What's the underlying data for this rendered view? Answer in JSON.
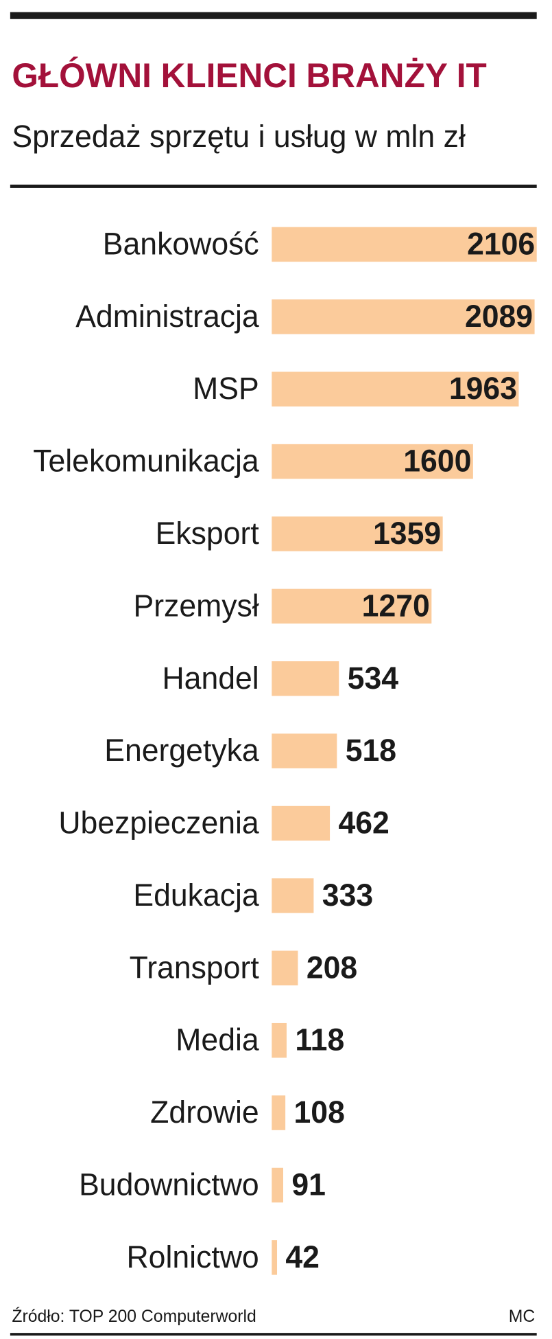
{
  "chart_data": {
    "type": "bar",
    "orientation": "horizontal",
    "title": "GŁÓWNI KLIENCI BRANŻY IT",
    "subtitle": "Sprzedaż sprzętu i usług w mln zł",
    "categories": [
      "Bankowość",
      "Administracja",
      "MSP",
      "Telekomunikacja",
      "Eksport",
      "Przemysł",
      "Handel",
      "Energetyka",
      "Ubezpieczenia",
      "Edukacja",
      "Transport",
      "Media",
      "Zdrowie",
      "Budownictwo",
      "Rolnictwo"
    ],
    "values": [
      2106,
      2089,
      1963,
      1600,
      1359,
      1270,
      534,
      518,
      462,
      333,
      208,
      118,
      108,
      91,
      42
    ],
    "color": "#fbcb9b",
    "source": "Źródło: TOP 200 Computerworld",
    "author": "MC"
  }
}
